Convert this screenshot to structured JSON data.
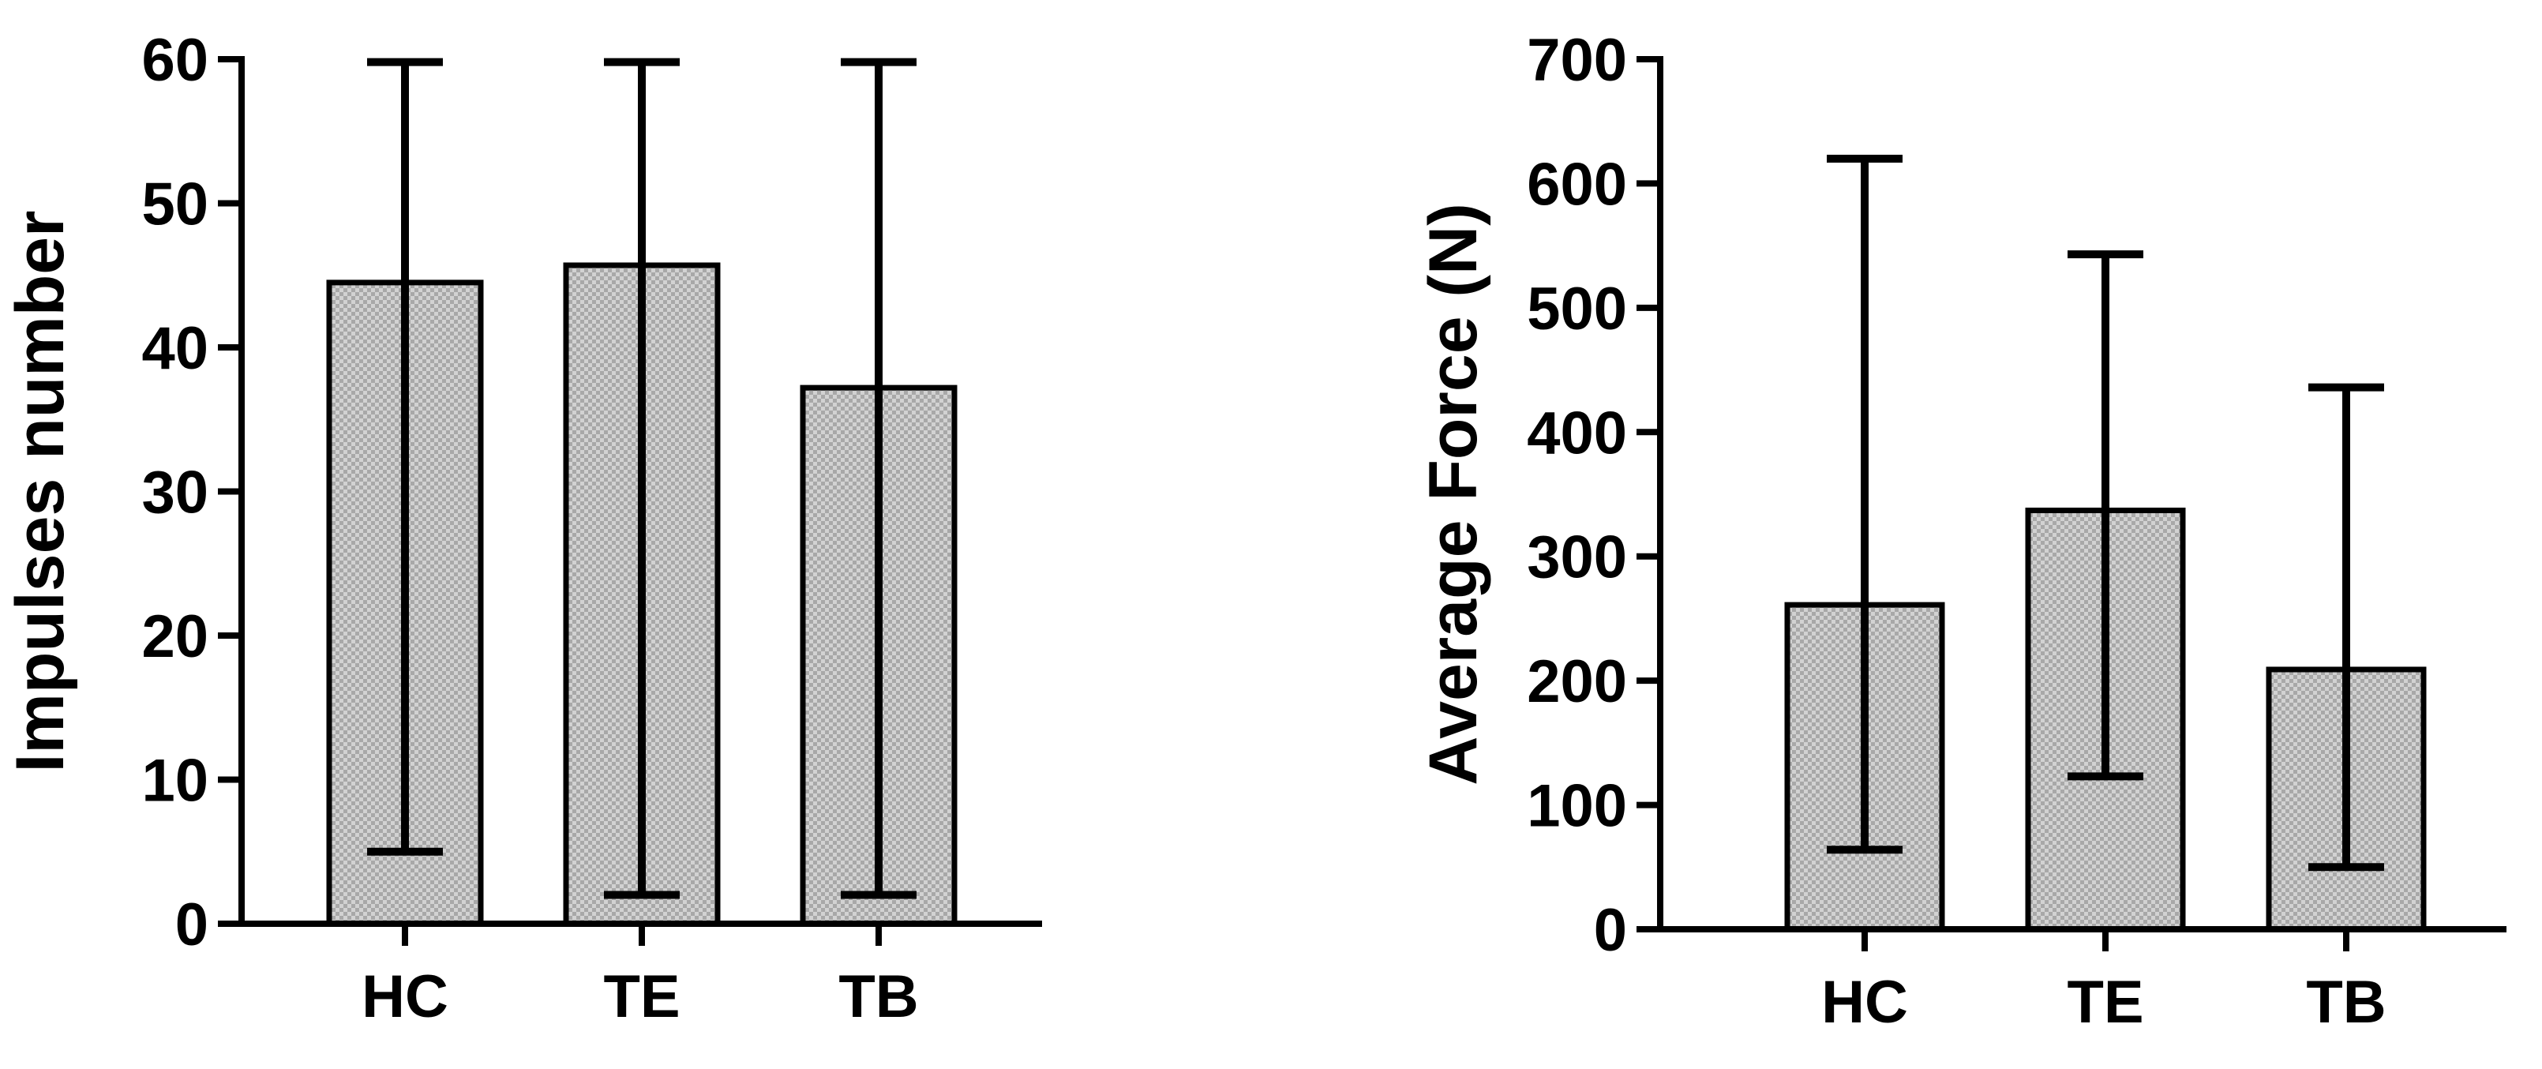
{
  "chart_data": [
    {
      "type": "bar",
      "categories": [
        "HC",
        "TE",
        "TB"
      ],
      "values": [
        44.5,
        45.7,
        37.2
      ],
      "error_low": [
        5,
        2,
        2
      ],
      "error_high": [
        59.8,
        59.8,
        59.8
      ],
      "ylabel": "Impulses number",
      "ylim": [
        0,
        60
      ],
      "yticks": [
        0,
        10,
        20,
        30,
        40,
        50,
        60
      ],
      "grid": false,
      "bar_fill": "#c8c8c8",
      "bar_stroke": "#000000"
    },
    {
      "type": "bar",
      "categories": [
        "HC",
        "TE",
        "TB"
      ],
      "values": [
        261,
        337,
        209
      ],
      "error_low": [
        64,
        123,
        50
      ],
      "error_high": [
        620,
        543,
        436
      ],
      "ylabel": "Average Force (N)",
      "ylim": [
        0,
        700
      ],
      "yticks": [
        0,
        100,
        200,
        300,
        400,
        500,
        600,
        700
      ],
      "grid": false,
      "bar_fill": "#c8c8c8",
      "bar_stroke": "#000000"
    }
  ]
}
